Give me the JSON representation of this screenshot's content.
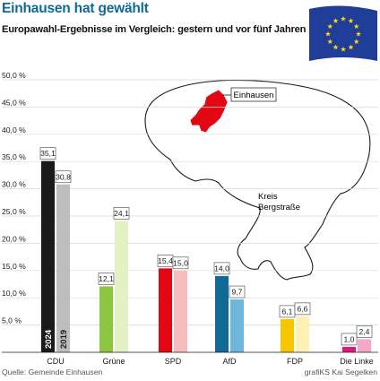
{
  "title": "Einhausen hat gewählt",
  "subtitle": "Europawahl-Ergebnisse im Vergleich: gestern und vor fünf Jahren",
  "source": "Quelle: Gemeinde Einhausen",
  "credit": "grafiKS Kai Segelken",
  "map": {
    "town_label": "Einhausen",
    "district_label_line1": "Kreis",
    "district_label_line2": "Bergstraße",
    "outline_color": "#1a1a1a",
    "fill_color": "#ffffff",
    "highlight_color": "#e30613"
  },
  "flag": {
    "icon": "eu-flag-icon",
    "background": "#1f3d99",
    "stars": "#ffdd00"
  },
  "chart_data": {
    "type": "bar",
    "title": "Europawahl-Ergebnisse im Vergleich: gestern und vor fünf Jahren",
    "categories": [
      "CDU",
      "Grüne",
      "SPD",
      "AfD",
      "FDP",
      "Die Linke"
    ],
    "series": [
      {
        "name": "2024",
        "values": [
          35.1,
          12.1,
          15.4,
          14.0,
          6.1,
          1.0
        ]
      },
      {
        "name": "2019",
        "values": [
          30.8,
          24.1,
          15.0,
          9.7,
          6.6,
          2.4
        ]
      }
    ],
    "value_labels": {
      "2024": [
        "35,1",
        "12,1",
        "15,4",
        "14,0",
        "6,1",
        "1,0"
      ],
      "2019": [
        "30,8",
        "24,1",
        "15,0",
        "9,7",
        "6,6",
        "2,4"
      ]
    },
    "colors": {
      "2024": [
        "#1a1a1a",
        "#8cc63e",
        "#e30613",
        "#0f6a95",
        "#f7c600",
        "#e0177a"
      ],
      "2019": [
        "#bdbdbd",
        "#e4f1c4",
        "#f7bcbc",
        "#6fb6dc",
        "#fdf0b3",
        "#f5a7c8"
      ]
    },
    "year_labels_in_bars": [
      "2024",
      "2019"
    ],
    "y_ticks": [
      5,
      10,
      15,
      20,
      25,
      30,
      35,
      40,
      45,
      50
    ],
    "y_tick_labels": [
      "5,0 %",
      "10,0 %",
      "15,0 %",
      "20,0 %",
      "25,0 %",
      "30,0 %",
      "35,0 %",
      "40,0 %",
      "45,0 %",
      "50,0 %"
    ],
    "ylim": [
      0,
      50
    ],
    "grid": true,
    "xlabel": "",
    "ylabel": ""
  }
}
